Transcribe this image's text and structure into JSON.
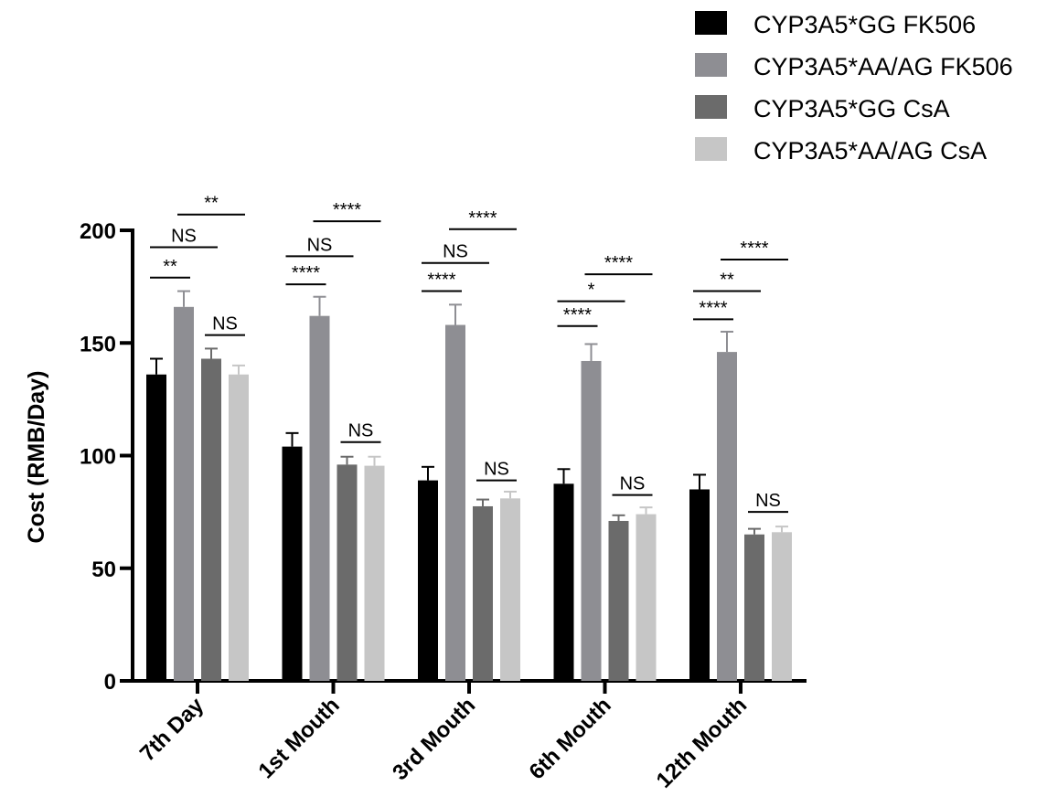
{
  "chart_data": {
    "type": "bar",
    "title": "",
    "xlabel": "",
    "ylabel": "Cost (RMB/Day)",
    "ylim": [
      0,
      200
    ],
    "yticks": [
      0,
      50,
      100,
      150,
      200
    ],
    "grid": false,
    "legend_position": "top-right",
    "categories": [
      "7th Day",
      "1st Mouth",
      "3rd Mouth",
      "6th Mouth",
      "12th Mouth"
    ],
    "series": [
      {
        "name": "CYP3A5*GG FK506",
        "color": "#000000",
        "values": [
          136,
          104,
          89,
          87.5,
          85
        ],
        "errors": [
          7,
          6,
          6,
          6.5,
          6.5
        ]
      },
      {
        "name": "CYP3A5*AA/AG FK506",
        "color": "#8e8e93",
        "values": [
          166,
          162,
          158,
          142,
          146
        ],
        "errors": [
          7,
          8.5,
          9,
          7.5,
          9
        ]
      },
      {
        "name": "CYP3A5*GG CsA",
        "color": "#6b6b6b",
        "values": [
          143,
          96,
          77.5,
          71,
          65
        ],
        "errors": [
          4.5,
          3.5,
          3,
          2.5,
          2.5
        ]
      },
      {
        "name": "CYP3A5*AA/AG CsA",
        "color": "#c6c6c6",
        "values": [
          136,
          95.5,
          81,
          74,
          66
        ],
        "errors": [
          4,
          4,
          3,
          3,
          2.5
        ]
      }
    ],
    "annotations": [
      {
        "category": 0,
        "from": 0,
        "to": 1,
        "label": "**",
        "level": 179
      },
      {
        "category": 0,
        "from": 0,
        "to": 2,
        "label": "NS",
        "level": 192.5
      },
      {
        "category": 0,
        "from": 1,
        "to": 3,
        "label": "**",
        "level": 207
      },
      {
        "category": 0,
        "from": 2,
        "to": 3,
        "label": "NS",
        "level": 153.5
      },
      {
        "category": 1,
        "from": 0,
        "to": 1,
        "label": "****",
        "level": 176
      },
      {
        "category": 1,
        "from": 0,
        "to": 2,
        "label": "NS",
        "level": 188.5
      },
      {
        "category": 1,
        "from": 1,
        "to": 3,
        "label": "****",
        "level": 204
      },
      {
        "category": 1,
        "from": 2,
        "to": 3,
        "label": "NS",
        "level": 106
      },
      {
        "category": 2,
        "from": 0,
        "to": 1,
        "label": "****",
        "level": 173
      },
      {
        "category": 2,
        "from": 0,
        "to": 2,
        "label": "NS",
        "level": 185.5
      },
      {
        "category": 2,
        "from": 1,
        "to": 3,
        "label": "****",
        "level": 200.5
      },
      {
        "category": 2,
        "from": 2,
        "to": 3,
        "label": "NS",
        "level": 89
      },
      {
        "category": 3,
        "from": 0,
        "to": 1,
        "label": "****",
        "level": 157.5
      },
      {
        "category": 3,
        "from": 0,
        "to": 2,
        "label": "*",
        "level": 168.5
      },
      {
        "category": 3,
        "from": 1,
        "to": 3,
        "label": "****",
        "level": 180.5
      },
      {
        "category": 3,
        "from": 2,
        "to": 3,
        "label": "NS",
        "level": 82.5
      },
      {
        "category": 4,
        "from": 0,
        "to": 1,
        "label": "****",
        "level": 160.5
      },
      {
        "category": 4,
        "from": 0,
        "to": 2,
        "label": "**",
        "level": 173
      },
      {
        "category": 4,
        "from": 1,
        "to": 3,
        "label": "****",
        "level": 187
      },
      {
        "category": 4,
        "from": 2,
        "to": 3,
        "label": "NS",
        "level": 75
      }
    ]
  }
}
